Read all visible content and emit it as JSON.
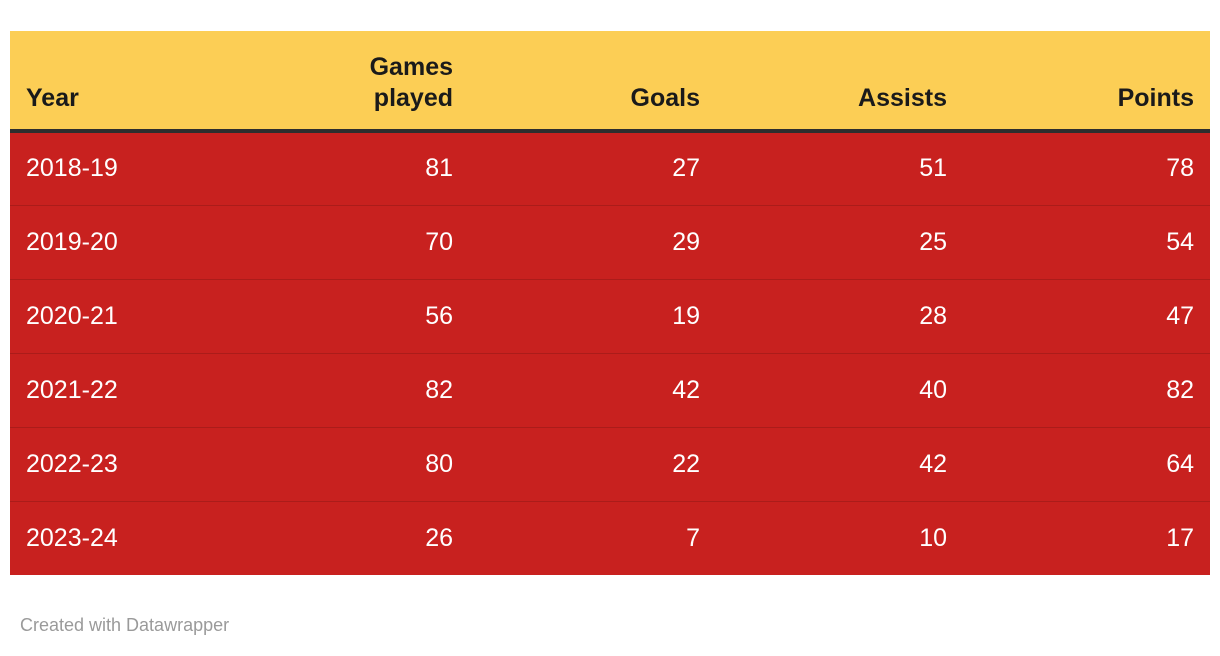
{
  "chart_data": {
    "type": "table",
    "title": "",
    "columns": [
      "Year",
      "Games played",
      "Goals",
      "Assists",
      "Points"
    ],
    "column_alignments": [
      "left",
      "right",
      "right",
      "right",
      "right"
    ],
    "rows": [
      [
        "2018-19",
        81,
        27,
        51,
        78
      ],
      [
        "2019-20",
        70,
        29,
        25,
        54
      ],
      [
        "2020-21",
        56,
        19,
        28,
        47
      ],
      [
        "2021-22",
        82,
        42,
        40,
        82
      ],
      [
        "2022-23",
        80,
        22,
        42,
        64
      ],
      [
        "2023-24",
        26,
        7,
        10,
        17
      ]
    ],
    "layout_hints": {
      "header_row": true,
      "grid": "horizontal-dividers-only",
      "header_position": "top"
    }
  },
  "footer": {
    "credit": "Created with Datawrapper"
  },
  "colors": {
    "header_bg": "#FCCE55",
    "header_text": "#1a1a1a",
    "header_border": "#2e2e2e",
    "row_bg": "#C8211F",
    "row_divider": "rgba(0,0,0,0.14)",
    "row_text": "#ffffff",
    "footer_text": "#9a9a9a",
    "page_bg": "#ffffff"
  }
}
